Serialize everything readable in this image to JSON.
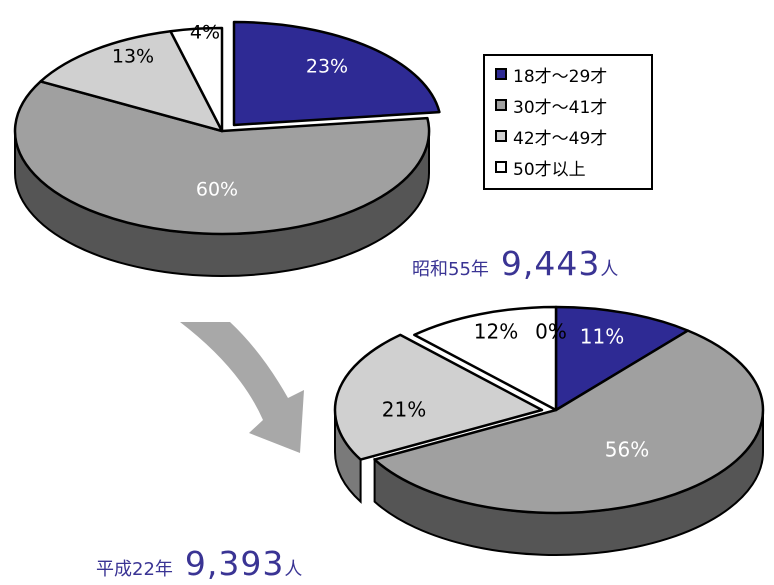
{
  "chart_data": [
    {
      "type": "pie",
      "caption": {
        "prefix": "昭和55年",
        "number": "9,443",
        "unit": "人"
      },
      "slices": [
        {
          "category": "18才～29才",
          "value": 23,
          "label": "23%"
        },
        {
          "category": "30才～41才",
          "value": 60,
          "label": "60%"
        },
        {
          "category": "42才～49才",
          "value": 13,
          "label": "13%"
        },
        {
          "category": "50才以上",
          "value": 4,
          "label": "4%"
        }
      ]
    },
    {
      "type": "pie",
      "caption": {
        "prefix": "平成22年",
        "number": "9,393",
        "unit": "人"
      },
      "slices": [
        {
          "category": "18才～29才",
          "value": 11,
          "label": "11%"
        },
        {
          "category": "30才～41才",
          "value": 56,
          "label": "56%"
        },
        {
          "category": "42才～49才",
          "value": 21,
          "label": "21%"
        },
        {
          "category": "50才以上",
          "value": 12,
          "label": "12%"
        },
        {
          "category": "",
          "value": 0,
          "label": "0%"
        }
      ]
    }
  ],
  "legend": {
    "items": [
      {
        "label": "18才～29才",
        "color": "#2e2a94"
      },
      {
        "label": "30才～41才",
        "color": "#a0a0a0"
      },
      {
        "label": "42才～49才",
        "color": "#d0d0d0"
      },
      {
        "label": "50才以上",
        "color": "#ffffff"
      }
    ]
  },
  "colors": {
    "navy_top": "#2e2a94",
    "navy_side": "#1b1860",
    "gray_top": "#a0a0a0",
    "gray_side": "#555555",
    "light_top": "#d0d0d0",
    "light_side": "#7a7a7a",
    "white_top": "#ffffff",
    "white_side": "#bdbdbd",
    "label_dark": "#000000",
    "label_light": "#ffffff",
    "caption": "#3a3494",
    "arrow": "#a8a8a8"
  }
}
